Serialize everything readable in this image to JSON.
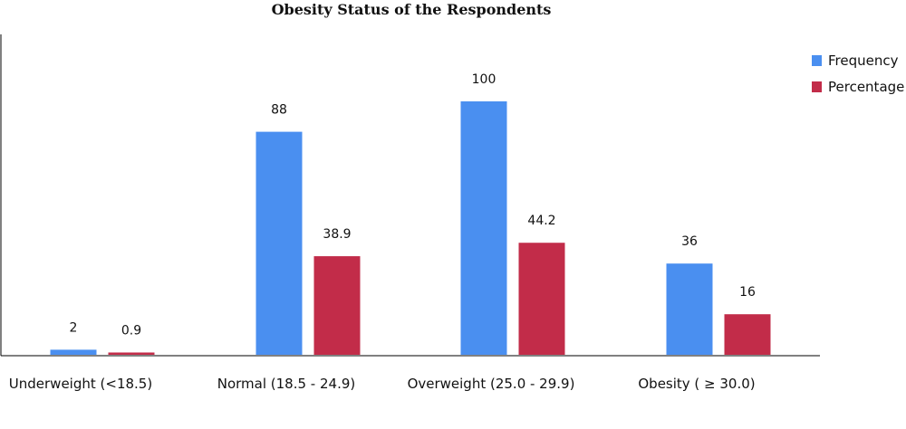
{
  "chart_data": {
    "type": "bar",
    "title": "Obesity Status of the Respondents",
    "xlabel": "",
    "ylabel": "",
    "categories": [
      "Underweight (<18.5)",
      "Normal (18.5 - 24.9)",
      "Overweight (25.0 - 29.9)",
      "Obesity ( ≥ 30.0)"
    ],
    "series": [
      {
        "name": "Frequency",
        "color": "#4a8ff0",
        "values": [
          2,
          88,
          100,
          36
        ],
        "labels": [
          "2",
          "88",
          "100",
          "36"
        ]
      },
      {
        "name": "Percentage",
        "color": "#c22c49",
        "values": [
          0.9,
          38.9,
          44.2,
          16
        ],
        "labels": [
          "0.9",
          "38.9",
          "44.2",
          "16"
        ]
      }
    ],
    "ylim": [
      0,
      130
    ],
    "grid": false,
    "legend_position": "top-right"
  }
}
